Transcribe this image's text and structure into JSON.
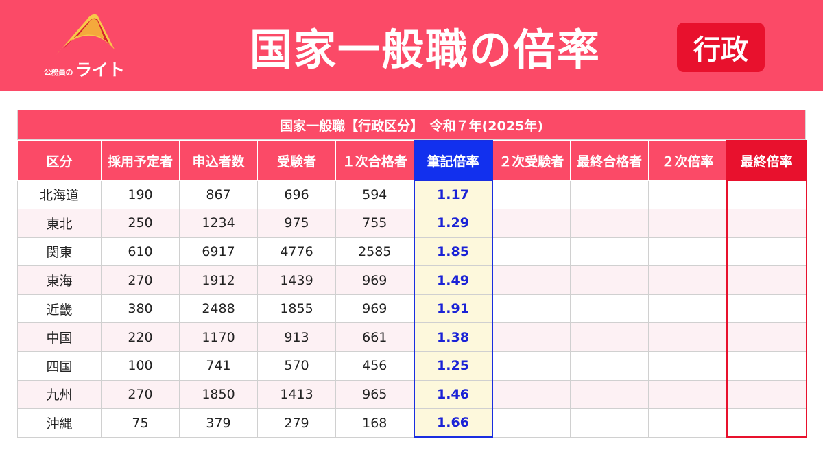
{
  "header": {
    "logo_small": "公務員の",
    "logo_big": "ライト",
    "title": "国家一般職の倍率",
    "badge": "行政"
  },
  "table": {
    "caption": "国家一般職【行政区分】　令和７年(2025年)",
    "columns": [
      "区分",
      "採用予定者",
      "申込者数",
      "受験者",
      "１次合格者",
      "筆記倍率",
      "２次受験者",
      "最終合格者",
      "２次倍率",
      "最終倍率"
    ],
    "rows": [
      {
        "region": "北海道",
        "planned": "190",
        "applicants": "867",
        "examinees": "696",
        "first_pass": "594",
        "written_ratio": "1.17",
        "second_exam": "",
        "final_pass": "",
        "second_ratio": "",
        "final_ratio": ""
      },
      {
        "region": "東北",
        "planned": "250",
        "applicants": "1234",
        "examinees": "975",
        "first_pass": "755",
        "written_ratio": "1.29",
        "second_exam": "",
        "final_pass": "",
        "second_ratio": "",
        "final_ratio": ""
      },
      {
        "region": "関東",
        "planned": "610",
        "applicants": "6917",
        "examinees": "4776",
        "first_pass": "2585",
        "written_ratio": "1.85",
        "second_exam": "",
        "final_pass": "",
        "second_ratio": "",
        "final_ratio": ""
      },
      {
        "region": "東海",
        "planned": "270",
        "applicants": "1912",
        "examinees": "1439",
        "first_pass": "969",
        "written_ratio": "1.49",
        "second_exam": "",
        "final_pass": "",
        "second_ratio": "",
        "final_ratio": ""
      },
      {
        "region": "近畿",
        "planned": "380",
        "applicants": "2488",
        "examinees": "1855",
        "first_pass": "969",
        "written_ratio": "1.91",
        "second_exam": "",
        "final_pass": "",
        "second_ratio": "",
        "final_ratio": ""
      },
      {
        "region": "中国",
        "planned": "220",
        "applicants": "1170",
        "examinees": "913",
        "first_pass": "661",
        "written_ratio": "1.38",
        "second_exam": "",
        "final_pass": "",
        "second_ratio": "",
        "final_ratio": ""
      },
      {
        "region": "四国",
        "planned": "100",
        "applicants": "741",
        "examinees": "570",
        "first_pass": "456",
        "written_ratio": "1.25",
        "second_exam": "",
        "final_pass": "",
        "second_ratio": "",
        "final_ratio": ""
      },
      {
        "region": "九州",
        "planned": "270",
        "applicants": "1850",
        "examinees": "1413",
        "first_pass": "965",
        "written_ratio": "1.46",
        "second_exam": "",
        "final_pass": "",
        "second_ratio": "",
        "final_ratio": ""
      },
      {
        "region": "沖縄",
        "planned": "75",
        "applicants": "379",
        "examinees": "279",
        "first_pass": "168",
        "written_ratio": "1.66",
        "second_exam": "",
        "final_pass": "",
        "second_ratio": "",
        "final_ratio": ""
      }
    ]
  },
  "colors": {
    "header_bg": "#fb4a67",
    "badge_bg": "#e8112d",
    "written_ratio_header": "#1230ee",
    "written_ratio_text": "#1a22d6",
    "final_ratio_border": "#e8112d"
  }
}
